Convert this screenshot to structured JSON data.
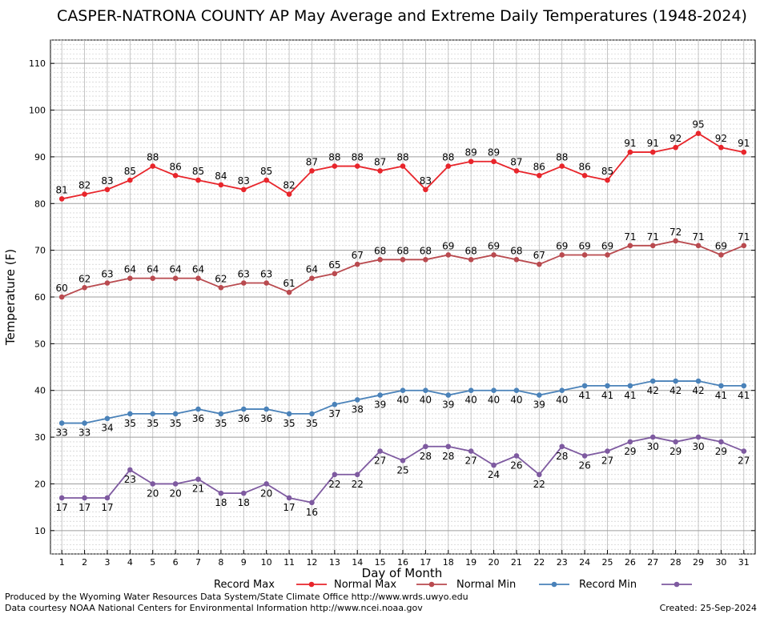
{
  "chart_data": {
    "type": "line",
    "title": "CASPER-NATRONA COUNTY AP May Average and Extreme Daily Temperatures (1948-2024)",
    "xlabel": "Day of Month",
    "ylabel": "Temperature (F)",
    "ylim": [
      5,
      115
    ],
    "xlim": [
      0.5,
      31.5
    ],
    "y_ticks": [
      10,
      20,
      30,
      40,
      50,
      60,
      70,
      80,
      90,
      100,
      110
    ],
    "x": [
      1,
      2,
      3,
      4,
      5,
      6,
      7,
      8,
      9,
      10,
      11,
      12,
      13,
      14,
      15,
      16,
      17,
      18,
      19,
      20,
      21,
      22,
      23,
      24,
      25,
      26,
      27,
      28,
      29,
      30,
      31
    ],
    "grid": true,
    "legend_position": "bottom",
    "series": [
      {
        "name": "Record Max",
        "color": "#e8252b",
        "label_pos": "above",
        "values": [
          81,
          82,
          83,
          85,
          88,
          86,
          85,
          84,
          83,
          85,
          82,
          87,
          88,
          88,
          87,
          88,
          83,
          88,
          89,
          89,
          87,
          86,
          88,
          86,
          85,
          91,
          91,
          92,
          95,
          92,
          91
        ]
      },
      {
        "name": "Normal Max",
        "color": "#b94a4f",
        "label_pos": "above",
        "values": [
          60,
          62,
          63,
          64,
          64,
          64,
          64,
          62,
          63,
          63,
          61,
          64,
          65,
          67,
          68,
          68,
          68,
          69,
          68,
          69,
          68,
          67,
          69,
          69,
          69,
          71,
          71,
          72,
          71,
          69,
          71
        ]
      },
      {
        "name": "Normal Min",
        "color": "#4a82b9",
        "label_pos": "below",
        "values": [
          33,
          33,
          34,
          35,
          35,
          35,
          36,
          35,
          36,
          36,
          35,
          35,
          37,
          38,
          39,
          40,
          40,
          39,
          40,
          40,
          40,
          39,
          40,
          41,
          41,
          41,
          42,
          42,
          42,
          41,
          41
        ]
      },
      {
        "name": "Record Min",
        "color": "#7e5aa0",
        "label_pos": "below",
        "values": [
          17,
          17,
          17,
          23,
          20,
          20,
          21,
          18,
          18,
          20,
          17,
          16,
          22,
          22,
          27,
          25,
          28,
          28,
          27,
          24,
          26,
          22,
          28,
          26,
          27,
          29,
          30,
          29,
          30,
          29,
          27
        ]
      }
    ]
  },
  "footer": {
    "produced_by": "Produced by the Wyoming Water Resources Data System/State Climate Office http://www.wrds.uwyo.edu",
    "courtesy": "Data courtesy NOAA National Centers for Environmental Information http://www.ncei.noaa.gov",
    "created": "Created:  25-Sep-2024"
  }
}
